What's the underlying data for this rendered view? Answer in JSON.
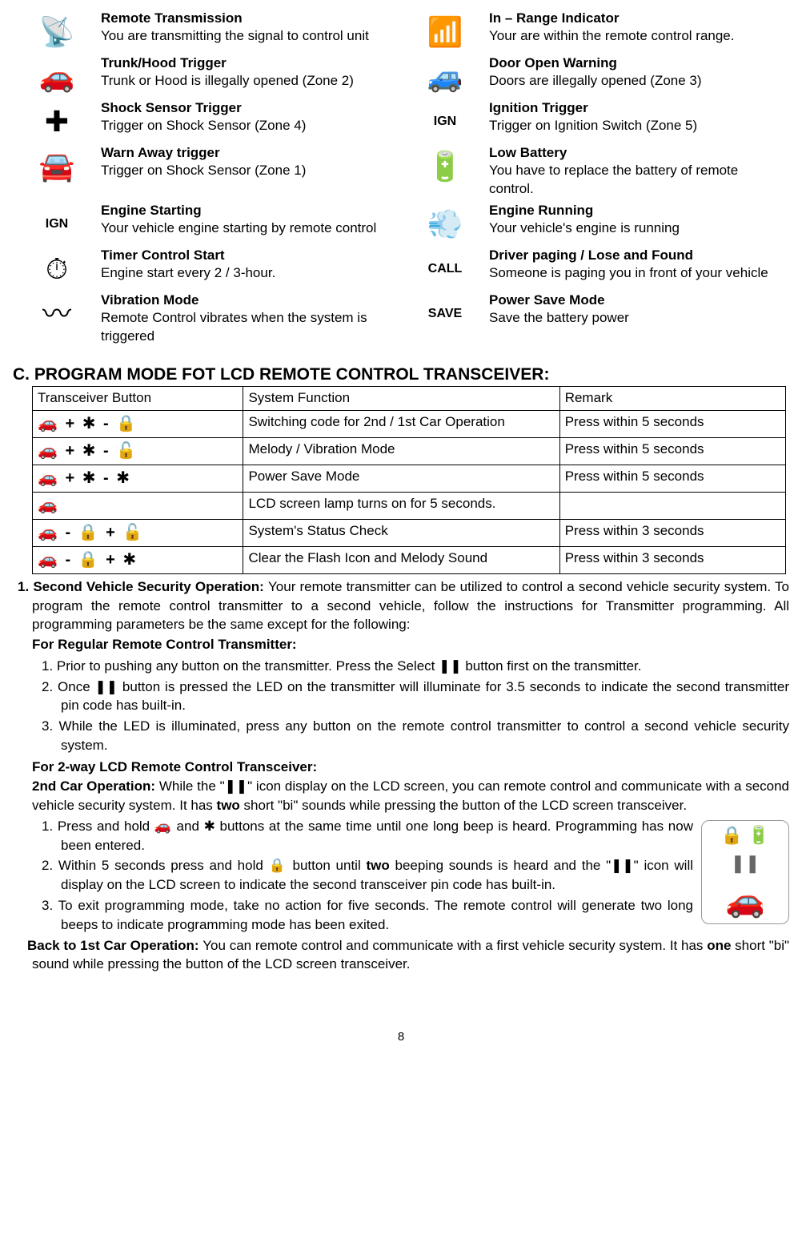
{
  "icons": [
    {
      "glyph": "📡",
      "title": "Remote Transmission",
      "desc": "You are transmitting the signal to control unit"
    },
    {
      "glyph": "📶",
      "title": "In – Range Indicator",
      "desc": "Your are within the remote control range."
    },
    {
      "glyph": "🚗",
      "title": "Trunk/Hood Trigger",
      "desc": "Trunk or Hood is illegally opened (Zone 2)"
    },
    {
      "glyph": "🚙",
      "title": "Door Open Warning",
      "desc": "Doors are illegally opened (Zone 3)"
    },
    {
      "glyph": "✚",
      "title": "Shock Sensor Trigger",
      "desc": "Trigger on Shock Sensor (Zone 4)"
    },
    {
      "glyph": "IGN",
      "title": "Ignition Trigger",
      "desc": "Trigger on Ignition Switch (Zone 5)"
    },
    {
      "glyph": "🚘",
      "title": "Warn Away trigger",
      "desc": "Trigger on Shock Sensor (Zone 1)"
    },
    {
      "glyph": "🔋",
      "title": "Low Battery",
      "desc": "You have to replace the battery of remote control."
    },
    {
      "glyph": "IGN",
      "title": "Engine Starting",
      "desc": "Your vehicle engine starting by remote control"
    },
    {
      "glyph": "💨",
      "title": "Engine Running",
      "desc": "Your vehicle's engine is running"
    },
    {
      "glyph": "⏱",
      "title": "Timer Control Start",
      "desc": "Engine start every 2 / 3-hour."
    },
    {
      "glyph": "CALL",
      "title": "Driver paging / Lose and Found",
      "desc": "Someone is paging you in front of your vehicle"
    },
    {
      "glyph": "〰",
      "title": "Vibration Mode",
      "desc": "Remote Control vibrates when the system is triggered"
    },
    {
      "glyph": "SAVE",
      "title": "Power Save Mode",
      "desc": "Save the battery power"
    }
  ],
  "section_c_title": "C. PROGRAM MODE FOT LCD REMOTE CONTROL TRANSCEIVER:",
  "table": {
    "headers": [
      "Transceiver Button",
      "System Function",
      "Remark"
    ],
    "rows": [
      {
        "btn_html": "🚗 <b>+</b> ✱ <b>-</b> 🔒",
        "func": "Switching code for 2nd / 1st Car Operation",
        "remark": "Press within 5 seconds",
        "just": true
      },
      {
        "btn_html": "🚗 <b>+</b> ✱ <b>-</b> 🔓",
        "func": "Melody / Vibration Mode",
        "remark": "Press within 5 seconds"
      },
      {
        "btn_html": "🚗 <b>+</b> ✱ <b>-</b> ✱",
        "func": "Power Save Mode",
        "remark": "Press within 5 seconds"
      },
      {
        "btn_html": "🚗",
        "func": "LCD screen lamp turns on for 5 seconds.",
        "remark": ""
      },
      {
        "btn_html": "🚗 <b>-</b> 🔒 <b>+</b> 🔓",
        "func": "System's Status Check",
        "remark": "Press within 3 seconds"
      },
      {
        "btn_html": "🚗 <b>-</b> 🔒 <b>+</b> ✱",
        "func": "Clear the Flash Icon and Melody Sound",
        "remark": "Press within 3 seconds"
      }
    ]
  },
  "section1": {
    "lead_bold": "1. Second Vehicle Security Operation: ",
    "lead_rest": "Your remote transmitter can be utilized to control a second vehicle security system. To program the remote control transmitter to a second vehicle, follow the instructions for Transmitter programming. All programming parameters be the same except for the following:",
    "regular_heading": "For Regular Remote Control Transmitter:",
    "reg_items": [
      "1. Prior to pushing any button on the transmitter. Press the Select ❚❚ button first on the transmitter.",
      "2. Once ❚❚ button is pressed the LED on the transmitter will illuminate for 3.5 seconds to indicate the second transmitter pin code has built-in.",
      "3. While the LED is illuminated, press any button on the remote control transmitter to control a second vehicle security system."
    ],
    "lcd_heading": "For 2-way LCD Remote Control Transceiver:",
    "car2_bold": "2nd Car Operation: ",
    "car2_rest": "While the \"❚❚\" icon display on the LCD screen, you can remote control and communicate with a second vehicle security system. It has ",
    "car2_two": "two",
    "car2_tail": " short \"bi\" sounds while pressing the button of the LCD screen transceiver.",
    "lcd_items": [
      "1. Press and hold 🚗 and ✱ buttons at the same time until one long beep is heard. Programming has now been entered.",
      "2. Within 5 seconds press and hold 🔒 button until <b>two</b> beeping sounds is heard and the \"❚❚\" icon will display on the LCD screen to indicate the second transceiver pin code has built-in.",
      "3. To exit programming mode, take no action for five seconds. The remote control will generate two long beeps to indicate programming mode has been exited."
    ],
    "back_bold": "Back to 1st Car Operation: ",
    "back_rest": "You can remote control and communicate with a first vehicle security system. It has ",
    "back_one": "one",
    "back_tail": " short \"bi\" sound while pressing the button of the LCD screen transceiver."
  },
  "page_number": "8",
  "lcd_preview": {
    "top": "🔒  🔋",
    "mid": "❚❚",
    "bottom": "🚗"
  }
}
